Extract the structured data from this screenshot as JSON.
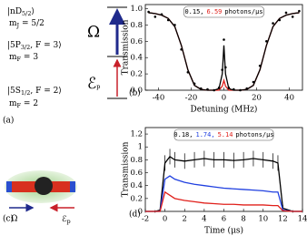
{
  "diagram": {
    "levels": [
      {
        "ket": {
          "pre": "|nD",
          "sub": "5/2",
          "post": "⟩"
        },
        "m": {
          "pre": "m",
          "sub": "J",
          "post": " = 5/2"
        }
      },
      {
        "ket": {
          "pre": "|5P",
          "sub": "3/2",
          "post": ", F = 3⟩"
        },
        "m": {
          "pre": "m",
          "sub": "F",
          "post": " = 3"
        }
      },
      {
        "ket": {
          "pre": "|5S",
          "sub": "1/2",
          "post": ", F = 2⟩"
        },
        "m": {
          "pre": "m",
          "sub": "F",
          "post": " = 2"
        }
      }
    ],
    "coupling_label": "Ω",
    "probe_label": {
      "pre": "ℰ",
      "sub": "p"
    },
    "panel_a": "(a)",
    "cloud_coupling_label": "Ω",
    "cloud_probe_label": {
      "pre": "ℰ",
      "sub": "p"
    },
    "panel_c": "(c)"
  },
  "chart_data": [
    {
      "type": "line",
      "panel_label": "(b)",
      "x_label": "Detuning (MHz)",
      "y_label": "Transmission",
      "xlim": [
        -48,
        48
      ],
      "ylim": [
        0,
        1.05
      ],
      "xticks": [
        -40,
        -20,
        0,
        20,
        40
      ],
      "yticks": [
        {
          "value": 0,
          "label": "0.0"
        },
        {
          "value": 0.2,
          "label": "0.2"
        },
        {
          "value": 0.4,
          "label": "0.4"
        },
        {
          "value": 0.6,
          "label": "0.6"
        },
        {
          "value": 0.8,
          "label": "0.8"
        },
        {
          "value": 1.0,
          "label": "1.0"
        }
      ],
      "annotation": {
        "parts": [
          {
            "text": "0.15,",
            "color": "#000000"
          },
          {
            "text": "6.59",
            "color": "#e0201b"
          },
          {
            "text": "photons/μs",
            "color": "#000000"
          }
        ]
      },
      "x": [
        -46,
        -42,
        -38,
        -34,
        -30,
        -26,
        -22,
        -18,
        -14,
        -10,
        -6,
        -3,
        -1,
        0,
        1,
        3,
        6,
        10,
        14,
        18,
        22,
        26,
        30,
        34,
        38,
        42,
        46
      ],
      "series": [
        {
          "mode": "line",
          "color": "#e0201b",
          "values": [
            0.95,
            0.94,
            0.92,
            0.88,
            0.78,
            0.55,
            0.25,
            0.06,
            0.01,
            0,
            0,
            0,
            0.05,
            0.12,
            0.05,
            0,
            0,
            0,
            0.01,
            0.06,
            0.25,
            0.55,
            0.78,
            0.88,
            0.92,
            0.94,
            0.95
          ]
        },
        {
          "mode": "line",
          "color": "#000000",
          "values": [
            0.95,
            0.94,
            0.92,
            0.88,
            0.78,
            0.55,
            0.25,
            0.06,
            0.01,
            0,
            0,
            0.02,
            0.2,
            0.55,
            0.2,
            0.02,
            0,
            0,
            0.01,
            0.06,
            0.25,
            0.55,
            0.78,
            0.88,
            0.92,
            0.94,
            0.95
          ]
        },
        {
          "mode": "markers",
          "color": "#000000",
          "values": [
            0.96,
            0.9,
            0.93,
            0.86,
            0.8,
            0.5,
            0.22,
            0.08,
            0.02,
            0.01,
            0,
            0.03,
            0.25,
            0.62,
            0.28,
            0.03,
            0.01,
            0,
            0.02,
            0.1,
            0.3,
            0.6,
            0.82,
            0.86,
            0.95,
            0.9,
            0.97
          ]
        }
      ]
    },
    {
      "type": "line",
      "panel_label": "(d)",
      "x_label": "Time (μs)",
      "y_label": "Transmission",
      "xlim": [
        -2,
        14
      ],
      "ylim": [
        0,
        1.3
      ],
      "xticks": [
        -2,
        0,
        2,
        4,
        6,
        8,
        10,
        12,
        14
      ],
      "yticks": [
        0,
        0.2,
        0.4,
        0.6,
        0.8,
        1,
        1.2
      ],
      "annotation": {
        "parts": [
          {
            "text": "0.18,",
            "color": "#000000"
          },
          {
            "text": "1.74,",
            "color": "#2040e0"
          },
          {
            "text": "5.14",
            "color": "#e0201b"
          },
          {
            "text": "photons/μs",
            "color": "#000000"
          }
        ]
      },
      "x": [
        -2,
        -1,
        -0.5,
        0,
        0.5,
        1,
        2,
        3,
        4,
        5,
        6,
        7,
        8,
        9,
        10,
        11,
        11.5,
        12,
        13,
        14
      ],
      "series": [
        {
          "mode": "line",
          "color": "#000000",
          "values": [
            0,
            0,
            0.02,
            0.75,
            0.85,
            0.8,
            0.78,
            0.8,
            0.82,
            0.8,
            0.8,
            0.79,
            0.8,
            0.82,
            0.8,
            0.78,
            0.75,
            0.05,
            0,
            0
          ],
          "errors": [
            0.02,
            0.02,
            0.02,
            0.12,
            0.12,
            0.12,
            0.12,
            0.12,
            0.12,
            0.12,
            0.12,
            0.12,
            0.12,
            0.12,
            0.12,
            0.12,
            0.12,
            0.05,
            0.02,
            0.02
          ]
        },
        {
          "mode": "line",
          "color": "#2040e0",
          "values": [
            0,
            0,
            0,
            0.5,
            0.55,
            0.5,
            0.45,
            0.42,
            0.4,
            0.38,
            0.36,
            0.35,
            0.34,
            0.33,
            0.32,
            0.3,
            0.3,
            0.02,
            0,
            0
          ]
        },
        {
          "mode": "line",
          "color": "#e0201b",
          "values": [
            0,
            0,
            0,
            0.3,
            0.25,
            0.2,
            0.17,
            0.15,
            0.13,
            0.12,
            0.11,
            0.11,
            0.1,
            0.1,
            0.1,
            0.09,
            0.09,
            0.01,
            0,
            0
          ]
        }
      ]
    }
  ]
}
